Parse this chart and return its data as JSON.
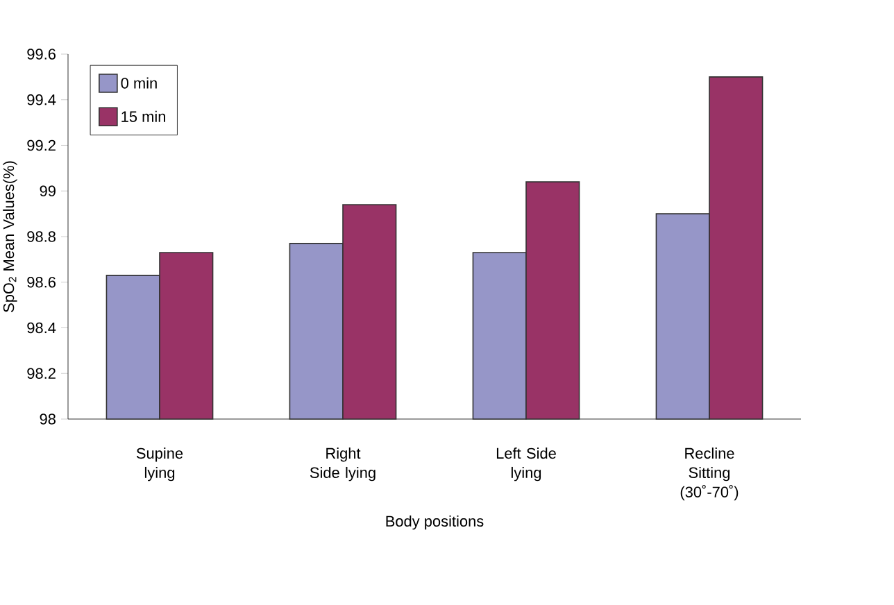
{
  "chart_data": {
    "type": "bar",
    "xlabel": "Body  positions",
    "ylabel": "SpO$_{2}$ Mean Values(%)",
    "categories": [
      "Supine lying",
      "Right Side lying",
      "Left Side lying",
      "Recline Sitting (30˚-70˚)"
    ],
    "series": [
      {
        "name": "0 min",
        "color": "#9696c8",
        "values": [
          98.63,
          98.77,
          98.73,
          98.9
        ]
      },
      {
        "name": "15 min",
        "color": "#993366",
        "values": [
          98.73,
          98.94,
          99.04,
          99.5
        ]
      }
    ],
    "ylim": [
      98,
      99.6
    ],
    "yticks": [
      98,
      98.2,
      98.4,
      98.6,
      98.8,
      99,
      99.2,
      99.4,
      99.6
    ],
    "legend": "top left"
  }
}
